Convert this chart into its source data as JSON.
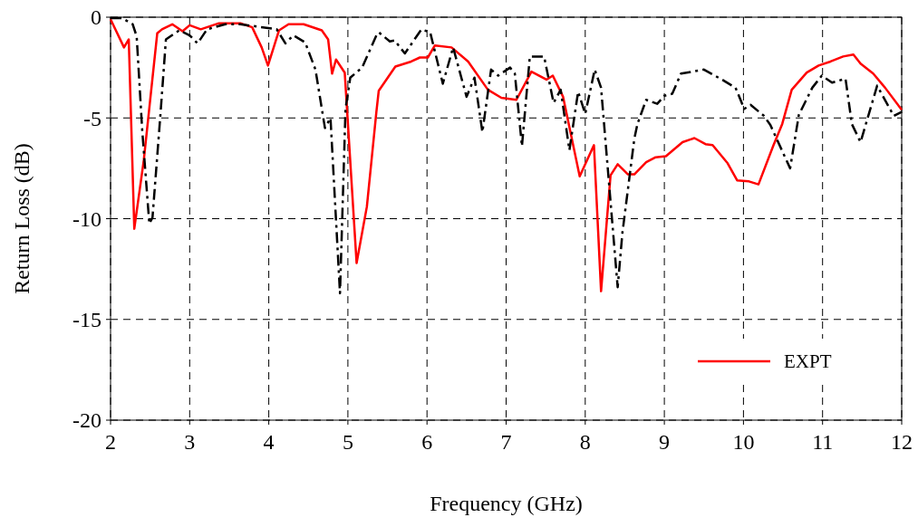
{
  "chart_data": {
    "type": "line",
    "xlabel": "Frequency (GHz)",
    "ylabel": "Return Loss (dB)",
    "xlim": [
      2,
      12
    ],
    "ylim": [
      -20,
      0
    ],
    "xticks": [
      2,
      3,
      4,
      5,
      6,
      7,
      8,
      9,
      10,
      11,
      12
    ],
    "yticks": [
      -20,
      -15,
      -10,
      -5,
      0
    ],
    "grid": true,
    "legend": "bottom right",
    "series": [
      {
        "name": "EXPT",
        "color": "#ff0000",
        "line_style": "solid",
        "x": [
          2.0,
          2.17,
          2.23,
          2.3,
          2.42,
          2.59,
          2.65,
          2.78,
          2.91,
          3.0,
          3.14,
          3.37,
          3.64,
          3.79,
          3.91,
          3.99,
          4.13,
          4.25,
          4.44,
          4.67,
          4.75,
          4.8,
          4.85,
          4.96,
          5.11,
          5.24,
          5.36,
          5.39,
          5.6,
          5.8,
          5.91,
          6.01,
          6.1,
          6.31,
          6.52,
          6.77,
          6.94,
          7.13,
          7.32,
          7.51,
          7.59,
          7.72,
          7.93,
          8.11,
          8.2,
          8.32,
          8.41,
          8.54,
          8.62,
          8.77,
          8.89,
          9.02,
          9.23,
          9.38,
          9.52,
          9.61,
          9.8,
          9.92,
          10.07,
          10.19,
          10.38,
          10.49,
          10.61,
          10.8,
          10.95,
          11.1,
          11.26,
          11.39,
          11.48,
          11.64,
          11.79,
          12.0
        ],
        "values": [
          -0.1,
          -1.5,
          -1.1,
          -10.5,
          -7.1,
          -0.8,
          -0.6,
          -0.35,
          -0.7,
          -0.4,
          -0.6,
          -0.3,
          -0.3,
          -0.5,
          -1.5,
          -2.4,
          -0.65,
          -0.35,
          -0.35,
          -0.65,
          -1.1,
          -2.8,
          -2.1,
          -2.75,
          -12.2,
          -9.4,
          -4.7,
          -3.65,
          -2.45,
          -2.2,
          -2.0,
          -2.0,
          -1.4,
          -1.5,
          -2.2,
          -3.6,
          -4.0,
          -4.1,
          -2.7,
          -3.1,
          -2.9,
          -3.95,
          -7.9,
          -6.35,
          -13.6,
          -7.85,
          -7.3,
          -7.8,
          -7.8,
          -7.2,
          -6.95,
          -6.9,
          -6.2,
          -6.0,
          -6.3,
          -6.35,
          -7.25,
          -8.1,
          -8.15,
          -8.3,
          -6.35,
          -5.3,
          -3.6,
          -2.75,
          -2.4,
          -2.2,
          -1.95,
          -1.85,
          -2.3,
          -2.8,
          -3.5,
          -4.6
        ]
      },
      {
        "color": "#000000",
        "line_style": "dashdot",
        "x": [
          2.0,
          2.15,
          2.28,
          2.33,
          2.4,
          2.49,
          2.53,
          2.63,
          2.7,
          2.87,
          3.0,
          3.1,
          3.22,
          3.45,
          3.64,
          4.1,
          4.21,
          4.31,
          4.46,
          4.59,
          4.71,
          4.78,
          4.9,
          4.97,
          5.03,
          5.18,
          5.36,
          5.39,
          5.53,
          5.59,
          5.72,
          5.93,
          6.04,
          6.2,
          6.33,
          6.5,
          6.6,
          6.7,
          6.81,
          6.9,
          7.05,
          7.11,
          7.2,
          7.3,
          7.48,
          7.6,
          7.69,
          7.8,
          7.91,
          8.0,
          8.12,
          8.2,
          8.41,
          8.47,
          8.62,
          8.66,
          8.77,
          8.91,
          9.0,
          9.1,
          9.21,
          9.5,
          9.73,
          9.9,
          10.01,
          10.09,
          10.26,
          10.34,
          10.59,
          10.7,
          10.87,
          10.99,
          11.12,
          11.29,
          11.37,
          11.48,
          11.69,
          11.9,
          12.0
        ],
        "values": [
          -0.05,
          -0.05,
          -0.35,
          -0.95,
          -5.6,
          -10.25,
          -9.95,
          -4.85,
          -1.1,
          -0.65,
          -0.9,
          -1.3,
          -0.6,
          -0.35,
          -0.35,
          -0.6,
          -1.3,
          -0.9,
          -1.25,
          -2.6,
          -5.5,
          -5.0,
          -13.7,
          -4.55,
          -3.0,
          -2.5,
          -0.9,
          -0.75,
          -1.2,
          -1.15,
          -1.8,
          -0.6,
          -0.75,
          -3.3,
          -1.5,
          -3.95,
          -3.0,
          -5.7,
          -2.6,
          -2.9,
          -2.5,
          -2.8,
          -6.4,
          -1.95,
          -1.95,
          -4.25,
          -3.6,
          -6.6,
          -3.7,
          -4.8,
          -2.6,
          -3.5,
          -13.4,
          -10.7,
          -6.05,
          -5.3,
          -4.1,
          -4.3,
          -3.9,
          -3.8,
          -2.8,
          -2.6,
          -3.1,
          -3.5,
          -4.55,
          -4.35,
          -4.9,
          -5.35,
          -7.5,
          -4.85,
          -3.5,
          -2.9,
          -3.25,
          -3.05,
          -5.3,
          -6.2,
          -3.4,
          -4.9,
          -4.7
        ]
      }
    ]
  }
}
